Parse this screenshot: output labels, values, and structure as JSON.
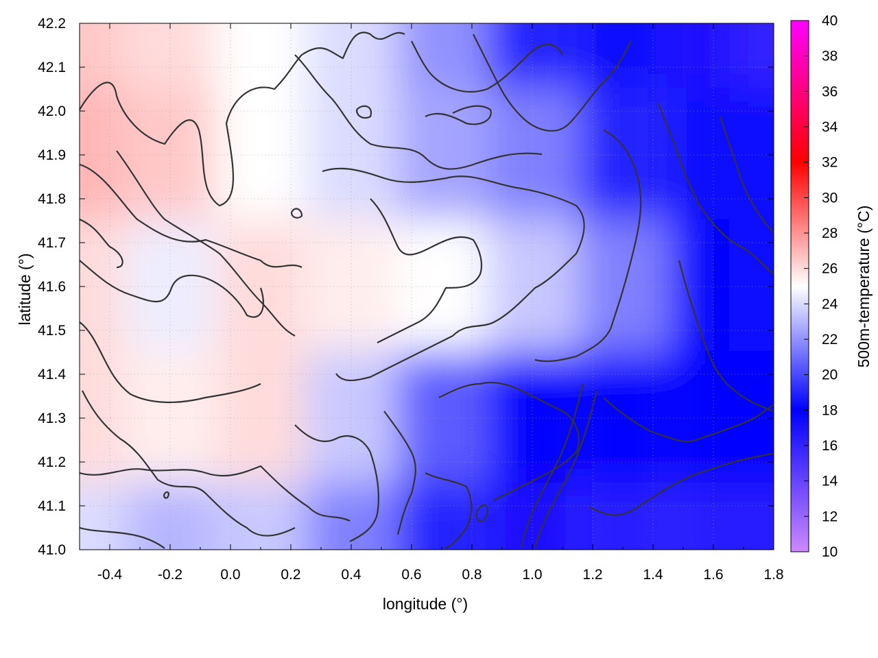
{
  "chart_data": {
    "type": "heatmap",
    "title": "",
    "xlabel": "longitude (°)",
    "ylabel": "latitude (°)",
    "colorbar_label": "500m-temperature (°C)",
    "xlim": [
      -0.5,
      1.8
    ],
    "ylim": [
      41.0,
      42.2
    ],
    "x_ticks": [
      "-0.4",
      "-0.2",
      "0.0",
      "0.2",
      "0.4",
      "0.6",
      "0.8",
      "1.0",
      "1.2",
      "1.4",
      "1.6",
      "1.8"
    ],
    "x_tick_values": [
      -0.4,
      -0.2,
      0.0,
      0.2,
      0.4,
      0.6,
      0.8,
      1.0,
      1.2,
      1.4,
      1.6,
      1.8
    ],
    "y_ticks": [
      "41.0",
      "41.1",
      "41.2",
      "41.3",
      "41.4",
      "41.5",
      "41.6",
      "41.7",
      "41.8",
      "41.9",
      "42.0",
      "42.1",
      "42.2"
    ],
    "y_tick_values": [
      41.0,
      41.1,
      41.2,
      41.3,
      41.4,
      41.5,
      41.6,
      41.7,
      41.8,
      41.9,
      42.0,
      42.1,
      42.2
    ],
    "colorbar_range": [
      10,
      40
    ],
    "colorbar_ticks": [
      "10",
      "12",
      "14",
      "16",
      "18",
      "20",
      "22",
      "24",
      "26",
      "28",
      "30",
      "32",
      "34",
      "36",
      "38",
      "40"
    ],
    "colorbar_tick_values": [
      10,
      12,
      14,
      16,
      18,
      20,
      22,
      24,
      26,
      28,
      30,
      32,
      34,
      36,
      38,
      40
    ],
    "colormap": [
      {
        "value": 10,
        "color": "#cc88ff"
      },
      {
        "value": 18,
        "color": "#0000ff"
      },
      {
        "value": 25,
        "color": "#ffffff"
      },
      {
        "value": 32,
        "color": "#ff0000"
      },
      {
        "value": 40,
        "color": "#ff00ff"
      }
    ],
    "grid": true,
    "contour_color": "#333333",
    "temperature_grid": {
      "lon": [
        -0.5,
        -0.2,
        0.1,
        0.4,
        0.7,
        1.0,
        1.3,
        1.6,
        1.8
      ],
      "lat": [
        42.2,
        41.9,
        41.6,
        41.3,
        41.0
      ],
      "values": [
        [
          26.5,
          26.0,
          25.0,
          24.0,
          22.0,
          19.0,
          17.5,
          17.0,
          16.0
        ],
        [
          27.0,
          26.5,
          25.0,
          24.0,
          22.5,
          21.5,
          19.0,
          17.5,
          17.5
        ],
        [
          26.0,
          24.5,
          26.0,
          25.5,
          25.0,
          23.5,
          21.5,
          18.0,
          17.5
        ],
        [
          26.0,
          25.5,
          26.0,
          23.5,
          20.5,
          18.0,
          18.0,
          18.0,
          18.0
        ],
        [
          24.0,
          23.0,
          23.5,
          21.5,
          19.0,
          17.0,
          16.5,
          16.5,
          16.5
        ]
      ]
    }
  }
}
